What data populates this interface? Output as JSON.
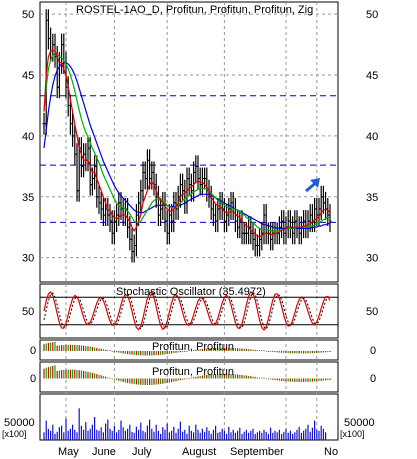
{
  "chart_data": {
    "type": "line",
    "title": "ROSTEL-1AO_D, Profitun, Profitun, Profitun, Zig",
    "x_labels": [
      "May",
      "June",
      "July",
      "August",
      "September",
      "No"
    ],
    "price_panel": {
      "ylim": [
        28,
        51
      ],
      "y_ticks": [
        30,
        35,
        40,
        45,
        50
      ],
      "y_tick_labels": [
        "30",
        "35",
        "40",
        "45",
        "50"
      ],
      "hlines": [
        43.3,
        37.6,
        32.9
      ],
      "close": [
        41,
        49.5,
        48,
        47,
        47.5,
        46.5,
        44,
        46,
        47.5,
        46,
        44,
        42.5,
        41,
        40,
        38.5,
        35.5,
        39,
        37.5,
        38.5,
        38,
        39,
        36,
        36.5,
        37.5,
        35,
        34.5,
        34,
        33.5,
        34,
        33.5,
        33,
        32,
        33,
        33.5,
        34.5,
        34,
        33.5,
        34,
        32.5,
        31.5,
        30.5,
        31,
        33.5,
        34.5,
        35.5,
        37,
        36.5,
        38,
        36.5,
        37,
        36,
        35,
        33.5,
        34,
        34.5,
        33,
        32,
        33.5,
        33,
        34.5,
        34,
        35,
        36,
        35.5,
        34.5,
        36.5,
        36,
        35.5,
        37,
        37.5,
        36.5,
        36,
        36.5,
        36.5,
        35.5,
        35,
        34,
        33.5,
        33,
        34,
        34.5,
        34,
        33,
        33.5,
        34,
        34.5,
        34,
        33,
        32.5,
        33,
        32,
        32,
        32,
        32.5,
        32,
        31.5,
        31,
        31,
        31.5,
        32,
        33.5,
        32,
        32,
        31.5,
        32,
        32,
        32,
        32.5,
        33,
        32,
        32.5,
        33,
        32.5,
        32,
        33,
        32.5,
        32,
        32.5,
        33,
        32.5,
        33,
        33.5,
        33,
        34,
        33.5,
        34,
        35,
        34.5,
        34,
        33.5,
        33
      ],
      "ma_red": [
        42,
        45,
        46.5,
        47,
        47,
        47,
        46.5,
        46,
        46,
        45.5,
        45,
        44,
        43,
        42,
        41,
        40,
        39,
        38.5,
        38,
        38,
        38,
        37.5,
        37,
        37,
        36.5,
        36,
        35.5,
        35,
        34.5,
        34,
        33.8,
        33.5,
        33.3,
        33.2,
        33.3,
        33.5,
        33.5,
        33.5,
        33.2,
        33,
        32.5,
        32.2,
        32.5,
        33,
        33.5,
        34.5,
        35,
        35.5,
        36,
        36.2,
        36,
        35.5,
        35,
        34.8,
        34.5,
        34.2,
        34,
        33.8,
        33.8,
        34,
        34.2,
        34.5,
        35,
        35.2,
        35.3,
        35.5,
        35.7,
        35.8,
        36,
        36.2,
        36.3,
        36.2,
        36.2,
        36,
        35.8,
        35.5,
        35,
        34.7,
        34.4,
        34.3,
        34.2,
        34,
        33.8,
        33.7,
        33.7,
        33.8,
        33.8,
        33.6,
        33.4,
        33.3,
        33,
        32.8,
        32.6,
        32.5,
        32.3,
        32.1,
        31.9,
        31.8,
        31.7,
        31.8,
        32,
        32,
        32,
        31.9,
        31.9,
        32,
        32,
        32.1,
        32.3,
        32.3,
        32.4,
        32.5,
        32.5,
        32.4,
        32.5,
        32.5,
        32.5,
        32.5,
        32.6,
        32.6,
        32.7,
        32.8,
        32.9,
        33.1,
        33.2,
        33.4,
        33.7,
        33.9,
        34,
        33.9,
        33.7
      ],
      "ma_green": [
        42,
        44,
        45.5,
        46.2,
        46.6,
        46.8,
        46.7,
        46.5,
        46.4,
        46.2,
        45.9,
        45.5,
        45,
        44.4,
        43.7,
        42.9,
        42.1,
        41.4,
        40.8,
        40.3,
        39.9,
        39.4,
        39,
        38.6,
        38.2,
        37.8,
        37.3,
        36.8,
        36.4,
        36,
        35.6,
        35.2,
        34.8,
        34.5,
        34.3,
        34.2,
        34.1,
        34,
        33.8,
        33.6,
        33.3,
        33,
        32.9,
        32.9,
        33,
        33.3,
        33.6,
        33.9,
        34.2,
        34.5,
        34.7,
        34.8,
        34.8,
        34.7,
        34.6,
        34.5,
        34.3,
        34.2,
        34.1,
        34.1,
        34.2,
        34.3,
        34.5,
        34.7,
        34.8,
        35,
        35.1,
        35.2,
        35.4,
        35.5,
        35.6,
        35.7,
        35.7,
        35.7,
        35.6,
        35.5,
        35.3,
        35.1,
        34.9,
        34.7,
        34.6,
        34.5,
        34.3,
        34.2,
        34.1,
        34.1,
        34,
        34,
        33.9,
        33.8,
        33.6,
        33.5,
        33.3,
        33.2,
        33,
        32.9,
        32.7,
        32.5,
        32.4,
        32.3,
        32.3,
        32.3,
        32.3,
        32.2,
        32.2,
        32.2,
        32.2,
        32.2,
        32.3,
        32.3,
        32.3,
        32.4,
        32.4,
        32.4,
        32.4,
        32.5,
        32.5,
        32.5,
        32.5,
        32.5,
        32.5,
        32.6,
        32.6,
        32.7,
        32.8,
        32.9,
        33,
        33.1,
        33.2,
        33.3,
        33.3
      ],
      "ma_blue": [
        39,
        40.5,
        42,
        43.2,
        44.2,
        44.9,
        45.4,
        45.7,
        45.9,
        46,
        46,
        45.9,
        45.7,
        45.4,
        45,
        44.5,
        43.9,
        43.3,
        42.7,
        42.1,
        41.5,
        40.9,
        40.4,
        39.9,
        39.4,
        38.9,
        38.4,
        37.9,
        37.5,
        37.1,
        36.7,
        36.3,
        35.9,
        35.6,
        35.3,
        35.1,
        34.9,
        34.7,
        34.5,
        34.3,
        34.1,
        33.9,
        33.8,
        33.7,
        33.7,
        33.7,
        33.8,
        33.9,
        34,
        34.1,
        34.2,
        34.3,
        34.3,
        34.3,
        34.3,
        34.3,
        34.3,
        34.2,
        34.2,
        34.2,
        34.2,
        34.3,
        34.3,
        34.4,
        34.5,
        34.6,
        34.7,
        34.8,
        34.9,
        35,
        35.1,
        35.2,
        35.2,
        35.2,
        35.2,
        35.2,
        35.1,
        35,
        34.9,
        34.8,
        34.7,
        34.6,
        34.5,
        34.4,
        34.3,
        34.2,
        34.1,
        34,
        33.9,
        33.8,
        33.7,
        33.6,
        33.5,
        33.4,
        33.3,
        33.2,
        33.1,
        33,
        32.9,
        32.8,
        32.7,
        32.7,
        32.6,
        32.6,
        32.5,
        32.5,
        32.4,
        32.4,
        32.4,
        32.4,
        32.4,
        32.4,
        32.4,
        32.4,
        32.4,
        32.4,
        32.4,
        32.4,
        32.4,
        32.4,
        32.4,
        32.4,
        32.5,
        32.5,
        32.5,
        32.6,
        32.6,
        32.7,
        32.7,
        32.8,
        32.8
      ]
    },
    "stochastic_panel": {
      "label": "Stochastic Oscillator (35.4972)",
      "y_ticks": [
        50
      ],
      "y_tick_labels": [
        "50"
      ],
      "levels": [
        80,
        20
      ]
    },
    "profitun_panel_1": {
      "label": "Profitun, Profitun",
      "y_ticks": [
        0
      ],
      "y_tick_labels": [
        "0"
      ]
    },
    "profitun_panel_2": {
      "label": "Profitun, Profitun",
      "y_ticks": [
        0
      ],
      "y_tick_labels": [
        "0"
      ]
    },
    "volume_panel": {
      "y_ticks": [
        50000
      ],
      "y_tick_labels": [
        "50000"
      ],
      "unit_label": "[x100]",
      "ylim": [
        0,
        90000
      ],
      "values": [
        15000,
        38000,
        22000,
        18000,
        30000,
        12000,
        16000,
        25000,
        28000,
        15000,
        42000,
        18000,
        22000,
        30000,
        20000,
        15000,
        62000,
        28000,
        20000,
        35000,
        18000,
        22000,
        30000,
        45000,
        20000,
        18000,
        25000,
        15000,
        32000,
        40000,
        22000,
        18000,
        28000,
        15000,
        20000,
        38000,
        25000,
        18000,
        22000,
        30000,
        16000,
        14000,
        26000,
        20000,
        34000,
        18000,
        15000,
        28000,
        40000,
        22000,
        16000,
        30000,
        18000,
        12000,
        25000,
        20000,
        32000,
        15000,
        18000,
        26000,
        14000,
        22000,
        36000,
        16000,
        20000,
        12000,
        28000,
        18000,
        15000,
        30000,
        20000,
        14000,
        22000,
        16000,
        25000,
        18000,
        12000,
        20000,
        28000,
        14000,
        16000,
        22000,
        18000,
        12000,
        26000,
        15000,
        20000,
        14000,
        18000,
        24000,
        12000,
        16000,
        20000,
        14000,
        18000,
        22000,
        12000,
        15000,
        18000,
        14000,
        20000,
        16000,
        12000,
        24000,
        14000,
        18000,
        15000,
        20000,
        12000,
        16000,
        22000,
        14000,
        18000,
        12000,
        15000,
        20000,
        26000,
        14000,
        18000,
        22000,
        30000,
        16000,
        24000,
        38000,
        20000,
        18000,
        28000,
        22000,
        15000
      ]
    }
  },
  "colors": {
    "ma_red": "#e00000",
    "ma_green": "#00b000",
    "ma_blue": "#0000e0",
    "hline": "#0000c0",
    "arrow": "#1f5fd0",
    "osc_red": "#e00000",
    "osc_black": "#000000",
    "hist_red": "#e00000",
    "hist_green": "#00b000",
    "volume": "#1010d0",
    "grid": "#999999",
    "candle": "#000000"
  }
}
